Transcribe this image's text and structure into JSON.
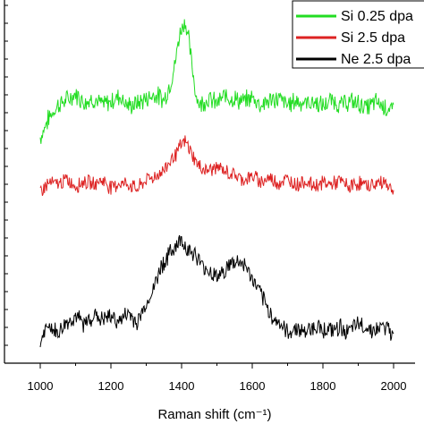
{
  "chart_data": {
    "type": "line",
    "xlabel": "Raman shift (cm⁻¹)",
    "xlim": [
      1000,
      2000
    ],
    "x_ticks": [
      1000,
      1200,
      1400,
      1600,
      1800,
      2000
    ],
    "ylim": [
      0,
      23
    ],
    "y_tick_marks": 20,
    "y_tick_labels_visible": false,
    "legend_position": "top-right",
    "series": [
      {
        "name": "Si 0.25 dpa",
        "color": "#22dd22",
        "x": [
          1000,
          1025,
          1050,
          1075,
          1100,
          1125,
          1150,
          1175,
          1200,
          1225,
          1250,
          1275,
          1300,
          1325,
          1350,
          1365,
          1380,
          1390,
          1400,
          1410,
          1420,
          1430,
          1440,
          1450,
          1460,
          1475,
          1500,
          1525,
          1550,
          1575,
          1600,
          1625,
          1650,
          1675,
          1700,
          1725,
          1750,
          1775,
          1800,
          1825,
          1850,
          1875,
          1900,
          1925,
          1950,
          1975,
          2000
        ],
        "values": [
          14.5,
          15.8,
          16.6,
          16.9,
          17.3,
          16.8,
          17.0,
          16.6,
          16.8,
          17.2,
          16.5,
          16.7,
          17.0,
          17.3,
          16.9,
          17.8,
          19.0,
          20.6,
          21.6,
          22.0,
          20.8,
          19.0,
          17.4,
          16.6,
          16.8,
          17.0,
          16.7,
          17.2,
          17.0,
          16.8,
          17.1,
          16.6,
          16.9,
          17.0,
          16.6,
          16.9,
          16.7,
          16.8,
          16.5,
          16.9,
          16.6,
          16.8,
          16.7,
          16.4,
          16.8,
          16.5,
          16.2
        ]
      },
      {
        "name": "Si 2.5 dpa",
        "color": "#dd2222",
        "x": [
          1000,
          1025,
          1050,
          1075,
          1100,
          1125,
          1150,
          1175,
          1200,
          1225,
          1250,
          1275,
          1300,
          1325,
          1350,
          1370,
          1390,
          1400,
          1410,
          1420,
          1435,
          1450,
          1475,
          1500,
          1525,
          1550,
          1575,
          1600,
          1625,
          1650,
          1675,
          1700,
          1725,
          1750,
          1775,
          1800,
          1825,
          1850,
          1875,
          1900,
          1925,
          1950,
          1975,
          2000
        ],
        "values": [
          11.1,
          11.6,
          11.5,
          11.8,
          11.4,
          11.7,
          11.5,
          11.8,
          11.3,
          11.6,
          11.5,
          11.2,
          11.8,
          12.0,
          12.4,
          13.1,
          13.6,
          14.1,
          14.2,
          13.9,
          13.2,
          12.6,
          12.4,
          12.6,
          12.3,
          12.1,
          11.8,
          12.0,
          11.7,
          11.9,
          11.6,
          11.8,
          11.5,
          11.7,
          11.4,
          11.6,
          11.5,
          11.7,
          11.3,
          11.6,
          11.4,
          11.5,
          11.7,
          11.0
        ]
      },
      {
        "name": "Ne 2.5 dpa",
        "color": "#000000",
        "x": [
          1000,
          1025,
          1050,
          1075,
          1100,
          1125,
          1150,
          1175,
          1200,
          1225,
          1250,
          1275,
          1300,
          1325,
          1340,
          1360,
          1380,
          1400,
          1420,
          1440,
          1460,
          1480,
          1500,
          1520,
          1540,
          1560,
          1580,
          1600,
          1620,
          1640,
          1660,
          1680,
          1700,
          1725,
          1750,
          1775,
          1800,
          1825,
          1850,
          1875,
          1900,
          1925,
          1950,
          1975,
          2000
        ],
        "values": [
          1.4,
          2.4,
          1.9,
          2.6,
          3.0,
          2.5,
          3.1,
          2.8,
          3.0,
          2.7,
          3.2,
          2.6,
          3.8,
          5.0,
          6.2,
          6.8,
          7.5,
          7.9,
          7.3,
          6.9,
          6.2,
          5.9,
          5.6,
          5.9,
          6.4,
          6.5,
          6.3,
          5.4,
          4.6,
          3.6,
          2.9,
          2.5,
          1.9,
          2.3,
          2.0,
          2.4,
          2.2,
          2.1,
          2.3,
          2.0,
          2.5,
          2.3,
          2.1,
          2.4,
          1.6
        ]
      }
    ]
  }
}
